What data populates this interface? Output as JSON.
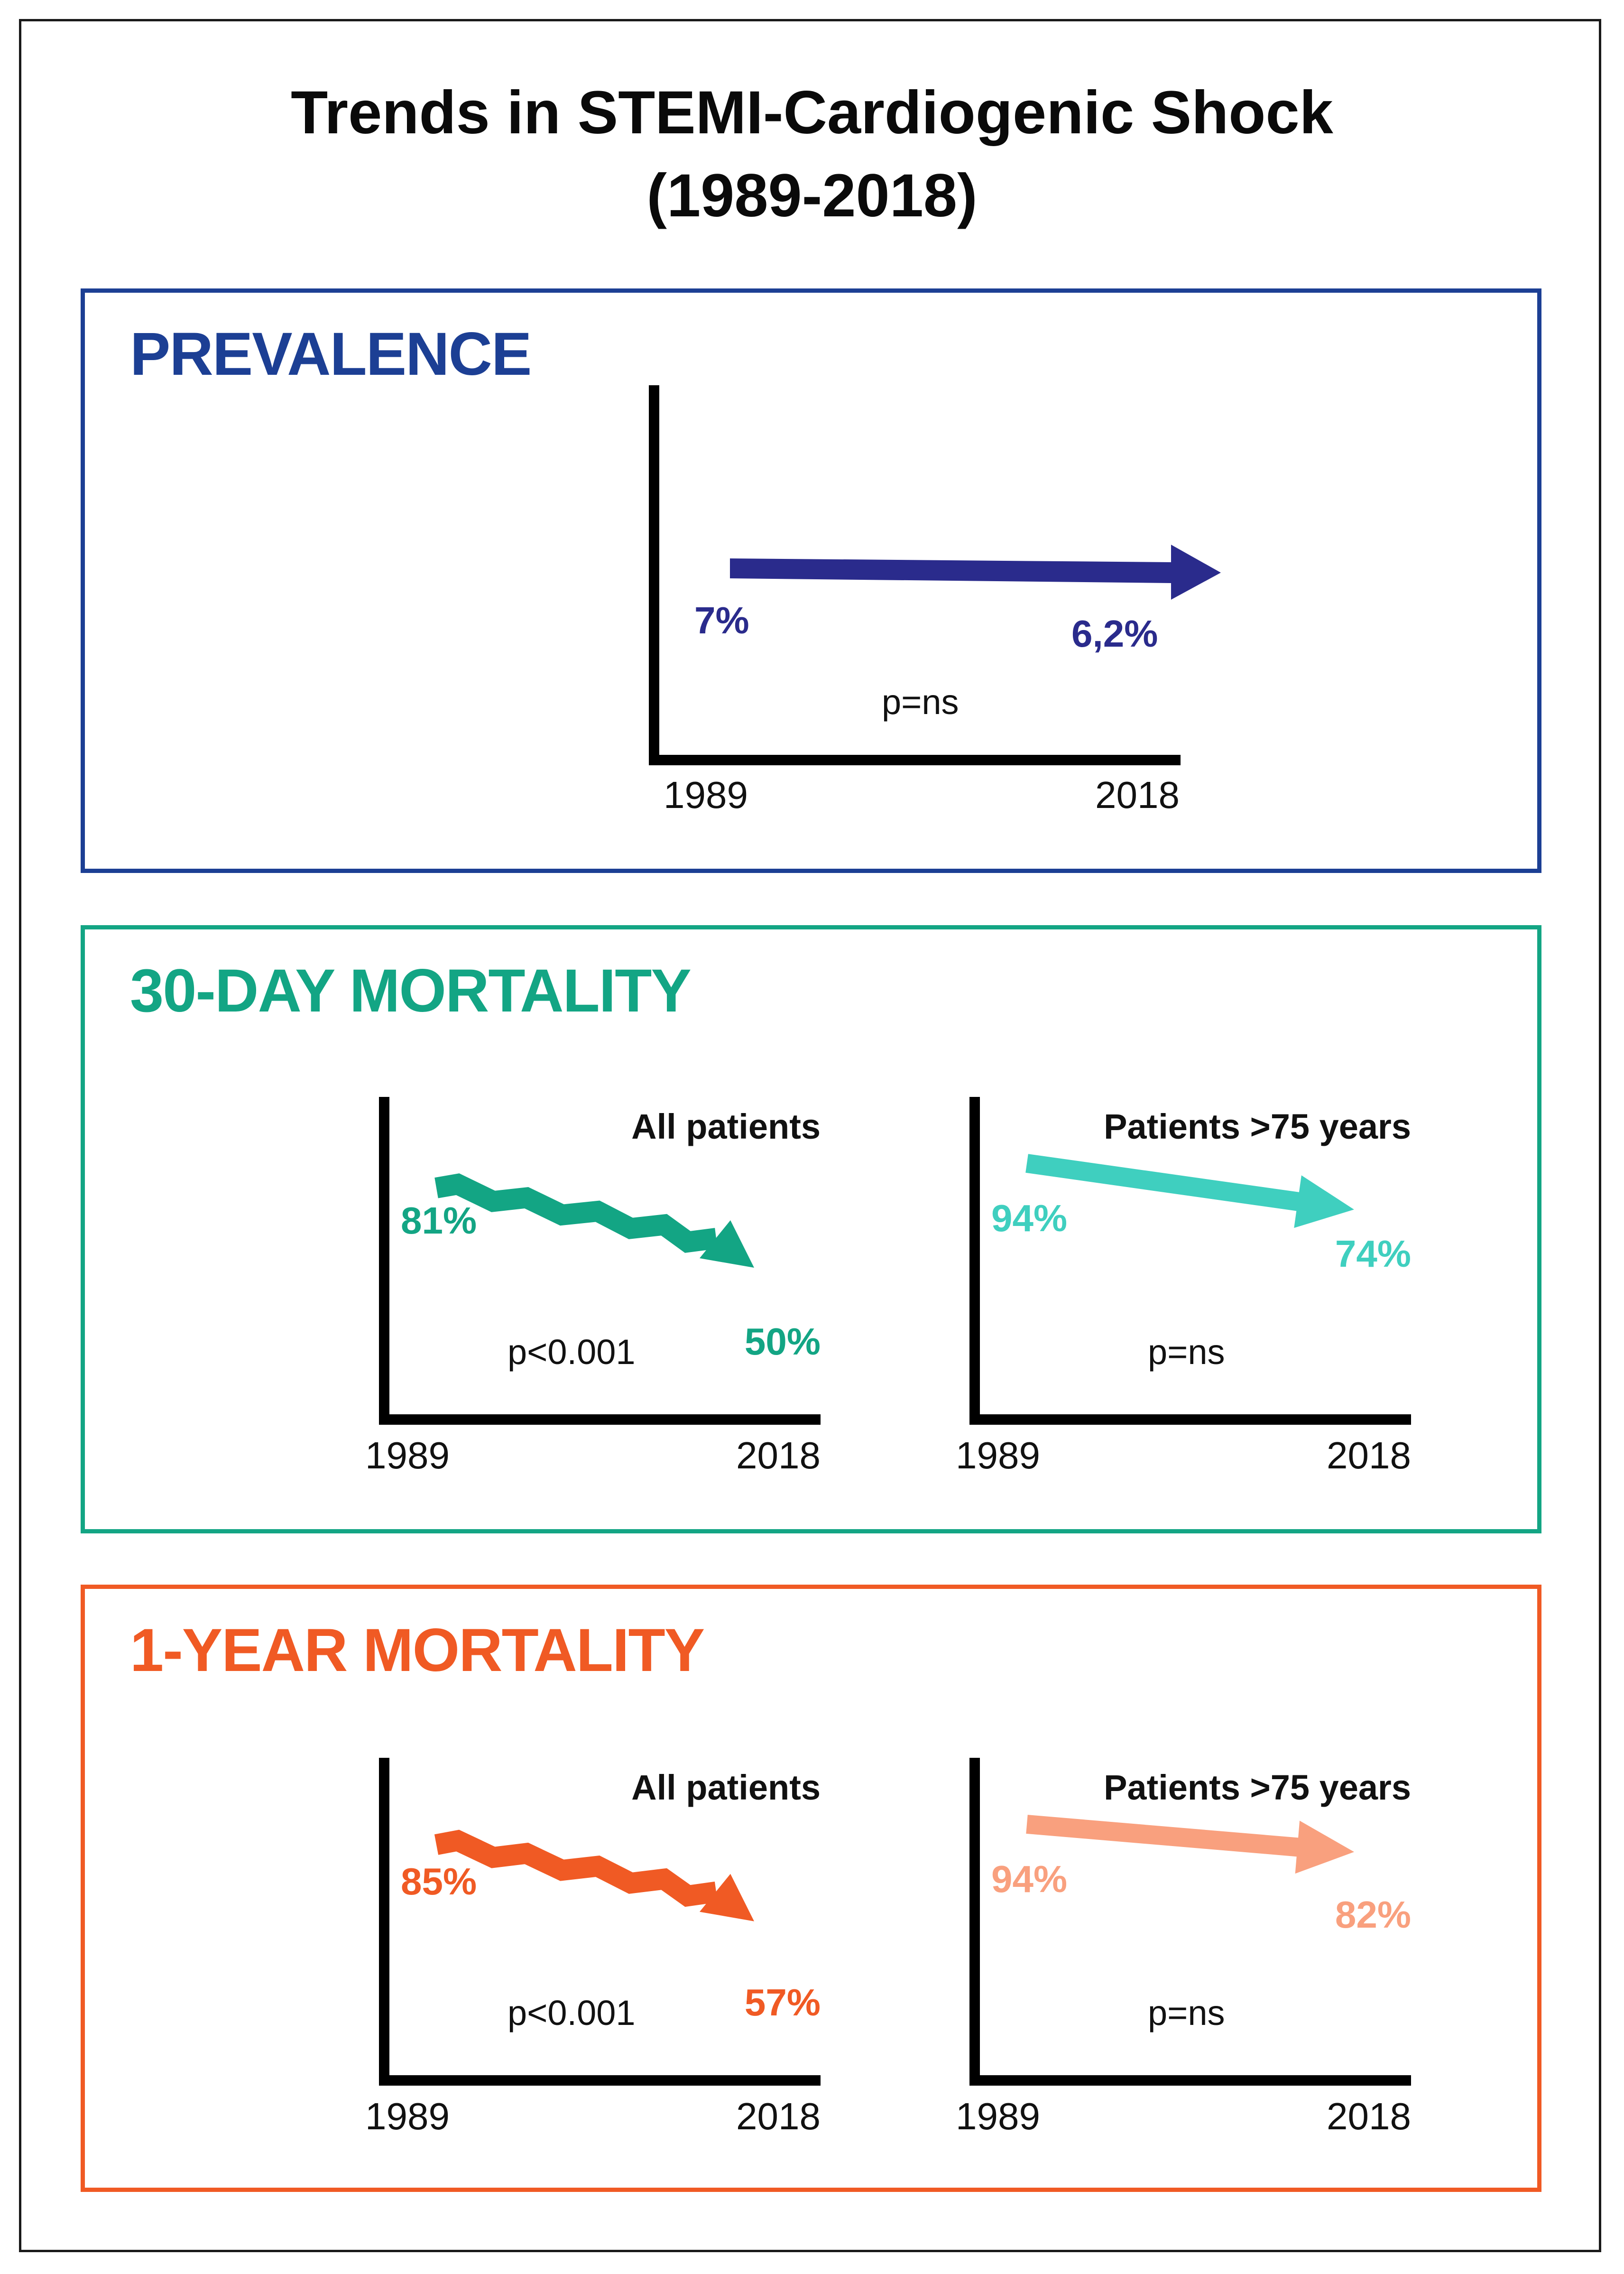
{
  "title_line1": "Trends in STEMI-Cardiogenic Shock",
  "title_line2": "(1989-2018)",
  "colors": {
    "prevalence": "#1c3f94",
    "prevalence_arrow": "#2a2b8c",
    "mortality30": "#13a584",
    "mortality30_elderly": "#3fcfbf",
    "mortality1y": "#f05a24",
    "mortality1y_elderly": "#f9a07e"
  },
  "panels": {
    "prevalence": {
      "heading": "PREVALENCE",
      "chart": {
        "x_start": "1989",
        "x_end": "2018",
        "start_label": "7%",
        "end_label": "6,2%",
        "p_value": "p=ns"
      }
    },
    "mortality30": {
      "heading": "30-DAY MORTALITY",
      "all": {
        "subtitle": "All patients",
        "x_start": "1989",
        "x_end": "2018",
        "start_label": "81%",
        "end_label": "50%",
        "p_value": "p<0.001"
      },
      "elderly": {
        "subtitle": "Patients >75 years",
        "x_start": "1989",
        "x_end": "2018",
        "start_label": "94%",
        "end_label": "74%",
        "p_value": "p=ns"
      }
    },
    "mortality1y": {
      "heading": "1-YEAR MORTALITY",
      "all": {
        "subtitle": "All patients",
        "x_start": "1989",
        "x_end": "2018",
        "start_label": "85%",
        "end_label": "57%",
        "p_value": "p<0.001"
      },
      "elderly": {
        "subtitle": "Patients >75 years",
        "x_start": "1989",
        "x_end": "2018",
        "start_label": "94%",
        "end_label": "82%",
        "p_value": "p=ns"
      }
    }
  },
  "chart_data": [
    {
      "type": "line",
      "title": "PREVALENCE",
      "x": [
        1989,
        2018
      ],
      "values": [
        7.0,
        6.2
      ],
      "unit": "%",
      "p_value": "p=ns",
      "trend": "flat"
    },
    {
      "type": "line",
      "title": "30-DAY MORTALITY - All patients",
      "x": [
        1989,
        2018
      ],
      "values": [
        81,
        50
      ],
      "unit": "%",
      "p_value": "p<0.001",
      "trend": "stepwise decrease"
    },
    {
      "type": "line",
      "title": "30-DAY MORTALITY - Patients >75 years",
      "x": [
        1989,
        2018
      ],
      "values": [
        94,
        74
      ],
      "unit": "%",
      "p_value": "p=ns",
      "trend": "decrease"
    },
    {
      "type": "line",
      "title": "1-YEAR MORTALITY - All patients",
      "x": [
        1989,
        2018
      ],
      "values": [
        85,
        57
      ],
      "unit": "%",
      "p_value": "p<0.001",
      "trend": "stepwise decrease"
    },
    {
      "type": "line",
      "title": "1-YEAR MORTALITY - Patients >75 years",
      "x": [
        1989,
        2018
      ],
      "values": [
        94,
        82
      ],
      "unit": "%",
      "p_value": "p=ns",
      "trend": "decrease"
    }
  ]
}
